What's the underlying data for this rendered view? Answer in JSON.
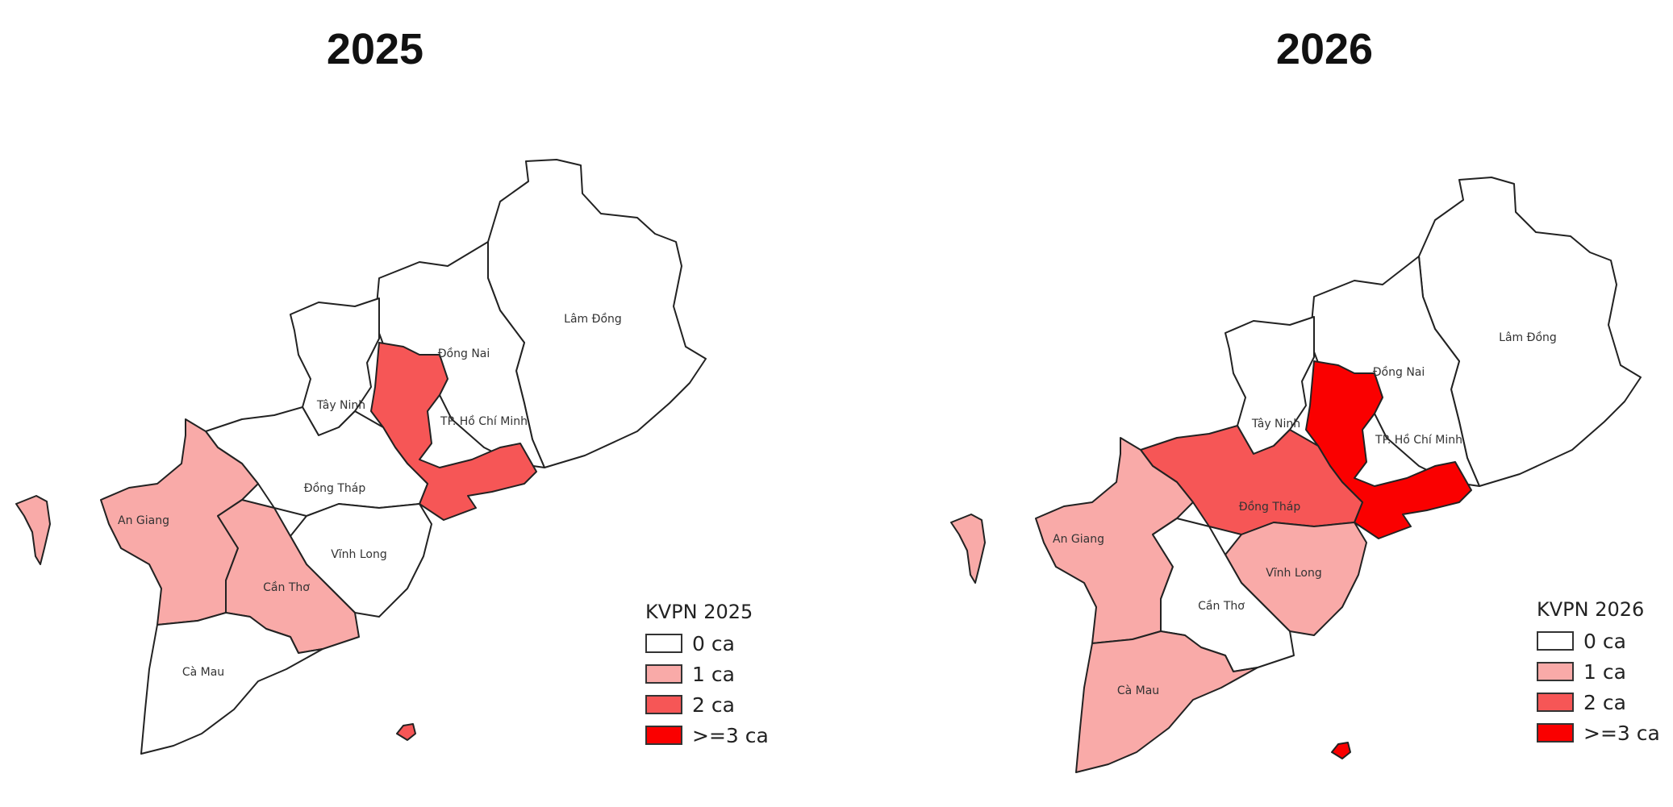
{
  "colors": {
    "c0": "#ffffff",
    "c1": "#f9aaa8",
    "c2": "#f65656",
    "c3": "#fa0000"
  },
  "maps": [
    {
      "title": "2025",
      "legend_title": "KVPN 2025",
      "legend": [
        "0 ca",
        "1 ca",
        "2 ca",
        ">=3 ca"
      ],
      "provinces": [
        {
          "name": "Lâm Đồng",
          "cases": "0 ca"
        },
        {
          "name": "Đồng Nai",
          "cases": "0 ca"
        },
        {
          "name": "Tây Ninh",
          "cases": "0 ca"
        },
        {
          "name": "TP. Hồ Chí Minh",
          "cases": "2 ca"
        },
        {
          "name": "Đồng Tháp",
          "cases": "0 ca"
        },
        {
          "name": "An Giang",
          "cases": "1 ca"
        },
        {
          "name": "Vĩnh Long",
          "cases": "0 ca"
        },
        {
          "name": "Cần Thơ",
          "cases": "1 ca"
        },
        {
          "name": "Cà Mau",
          "cases": "0 ca"
        }
      ]
    },
    {
      "title": "2026",
      "legend_title": "KVPN 2026",
      "legend": [
        "0 ca",
        "1 ca",
        "2 ca",
        ">=3 ca"
      ],
      "provinces": [
        {
          "name": "Lâm Đồng",
          "cases": "0 ca"
        },
        {
          "name": "Đồng Nai",
          "cases": "0 ca"
        },
        {
          "name": "Tây Ninh",
          "cases": "0 ca"
        },
        {
          "name": "TP. Hồ Chí Minh",
          "cases": ">=3 ca"
        },
        {
          "name": "Đồng Tháp",
          "cases": "2 ca"
        },
        {
          "name": "An Giang",
          "cases": "1 ca"
        },
        {
          "name": "Vĩnh Long",
          "cases": "1 ca"
        },
        {
          "name": "Cần Thơ",
          "cases": "0 ca"
        },
        {
          "name": "Cà Mau",
          "cases": "1 ca"
        }
      ]
    }
  ]
}
